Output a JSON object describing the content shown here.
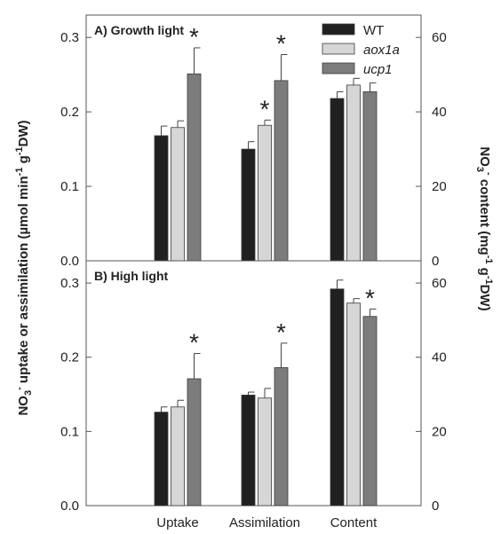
{
  "chart_data": [
    {
      "type": "bar",
      "panel_label": "A) Growth light",
      "categories": [
        "Uptake",
        "Assimilation",
        "Content"
      ],
      "series": [
        {
          "name": "WT",
          "color": "#202020",
          "values": [
            0.168,
            0.15,
            0.218
          ],
          "errors": [
            0.013,
            0.01,
            0.009
          ]
        },
        {
          "name": "aox1a",
          "color": "#d6d6d6",
          "values": [
            0.179,
            0.182,
            0.236
          ],
          "errors": [
            0.009,
            0.007,
            0.009
          ]
        },
        {
          "name": "ucp1",
          "color": "#7c7c7c",
          "values": [
            0.251,
            0.242,
            0.227
          ],
          "errors": [
            0.035,
            0.035,
            0.012
          ]
        }
      ],
      "significance": [
        [
          false,
          false,
          true
        ],
        [
          false,
          true,
          true
        ],
        [
          false,
          false,
          false
        ]
      ],
      "ylim": [
        0,
        0.33
      ],
      "yticks": [
        "0.0",
        "0.1",
        "0.2",
        "0.3"
      ],
      "y2lim": [
        0,
        66
      ],
      "y2ticks": [
        "0",
        "20",
        "40",
        "60"
      ],
      "legend_position": "top-right"
    },
    {
      "type": "bar",
      "panel_label": "B) High light",
      "categories": [
        "Uptake",
        "Assimilation",
        "Content"
      ],
      "series": [
        {
          "name": "WT",
          "color": "#202020",
          "values": [
            0.126,
            0.149,
            0.292
          ],
          "errors": [
            0.007,
            0.004,
            0.012
          ]
        },
        {
          "name": "aox1a",
          "color": "#d6d6d6",
          "values": [
            0.133,
            0.145,
            0.273
          ],
          "errors": [
            0.009,
            0.013,
            0.006
          ]
        },
        {
          "name": "ucp1",
          "color": "#7c7c7c",
          "values": [
            0.171,
            0.186,
            0.255
          ],
          "errors": [
            0.034,
            0.033,
            0.01
          ]
        }
      ],
      "significance": [
        [
          false,
          false,
          true
        ],
        [
          false,
          false,
          true
        ],
        [
          false,
          false,
          true
        ]
      ],
      "ylim": [
        0,
        0.33
      ],
      "yticks": [
        "0.0",
        "0.1",
        "0.2",
        "0.3"
      ],
      "y2lim": [
        0,
        66
      ],
      "y2ticks": [
        "0",
        "20",
        "40",
        "60"
      ]
    }
  ],
  "axes": {
    "left_label": [
      "NO",
      "3",
      "-",
      " uptake or assimilation (µmol min",
      "-1",
      " g",
      "-1",
      "DW)"
    ],
    "right_label": [
      "NO",
      "3",
      "-",
      " content (mg",
      "-1",
      " g",
      "-1",
      "DW)"
    ],
    "significance_marker": "*"
  }
}
